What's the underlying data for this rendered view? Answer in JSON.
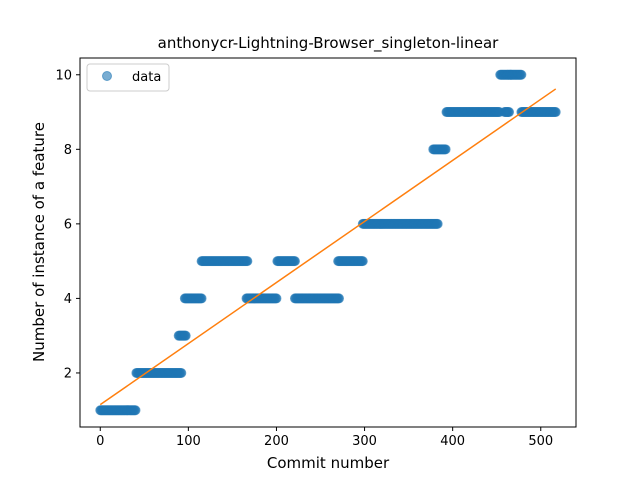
{
  "chart_data": {
    "type": "scatter",
    "title": "anthonycr-Lightning-Browser_singleton-linear",
    "xlabel": "Commit number",
    "ylabel": "Number of instance of a feature",
    "xlim": [
      -23,
      540
    ],
    "ylim": [
      0.55,
      10.45
    ],
    "xticks": [
      0,
      100,
      200,
      300,
      400,
      500
    ],
    "yticks": [
      2,
      4,
      6,
      8,
      10
    ],
    "legend": {
      "position": "top-left",
      "entries": [
        "data"
      ]
    },
    "grid": false,
    "colors": {
      "data": "#1f77b4",
      "fit": "#ff7f0e"
    },
    "segments": [
      {
        "x_start": 0,
        "x_end": 40,
        "y": 1
      },
      {
        "x_start": 41,
        "x_end": 92,
        "y": 2
      },
      {
        "x_start": 89,
        "x_end": 97,
        "y": 3
      },
      {
        "x_start": 96,
        "x_end": 115,
        "y": 4
      },
      {
        "x_start": 115,
        "x_end": 167,
        "y": 5
      },
      {
        "x_start": 166,
        "x_end": 200,
        "y": 4
      },
      {
        "x_start": 201,
        "x_end": 221,
        "y": 5
      },
      {
        "x_start": 221,
        "x_end": 271,
        "y": 4
      },
      {
        "x_start": 270,
        "x_end": 298,
        "y": 5
      },
      {
        "x_start": 298,
        "x_end": 383,
        "y": 6
      },
      {
        "x_start": 378,
        "x_end": 392,
        "y": 8
      },
      {
        "x_start": 393,
        "x_end": 453,
        "y": 9
      },
      {
        "x_start": 454,
        "x_end": 466,
        "y": 10
      },
      {
        "x_start": 459,
        "x_end": 464,
        "y": 9
      },
      {
        "x_start": 466,
        "x_end": 478,
        "y": 10
      },
      {
        "x_start": 478,
        "x_end": 517,
        "y": 9
      }
    ],
    "series": [
      {
        "name": "data",
        "kind": "scatter"
      },
      {
        "kind": "line",
        "x": [
          0,
          517
        ],
        "y": [
          1.15,
          9.62
        ]
      }
    ]
  }
}
